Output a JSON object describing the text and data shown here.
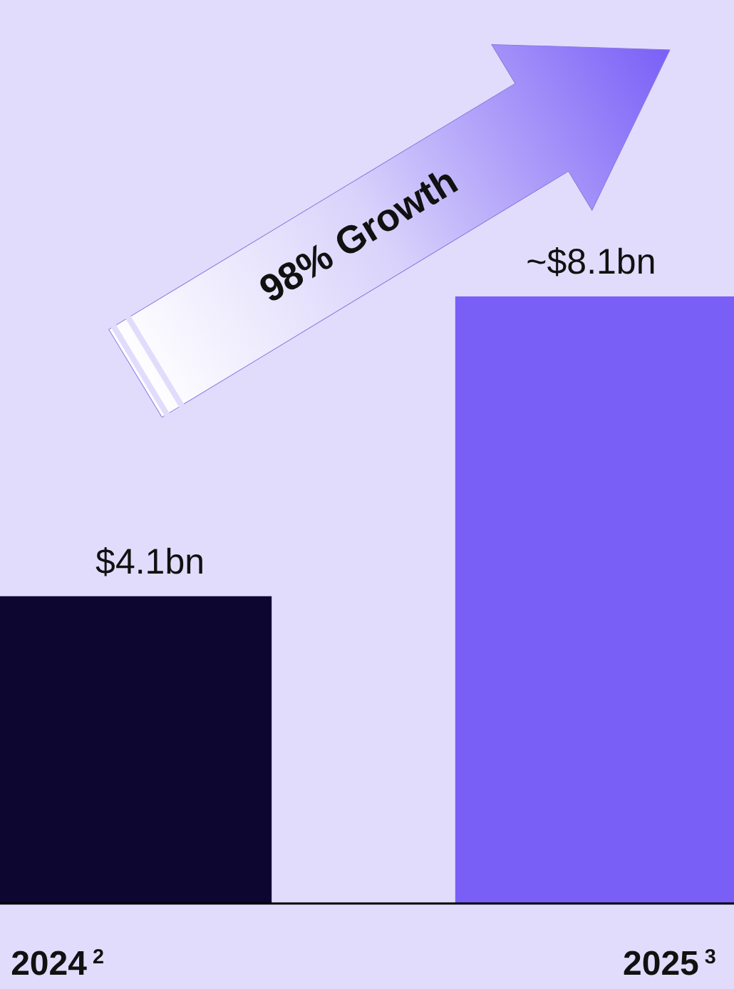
{
  "chart_data": {
    "type": "bar",
    "categories": [
      "2024$^{2}$",
      "2025$^{3}$"
    ],
    "values": [
      4.1,
      8.1
    ],
    "colors": [
      "#0d0630",
      "#7a5ff7"
    ],
    "value_labels": [
      "$4.1bn",
      "~$8.1bn"
    ],
    "annotations": [
      "98% Growth"
    ]
  }
}
